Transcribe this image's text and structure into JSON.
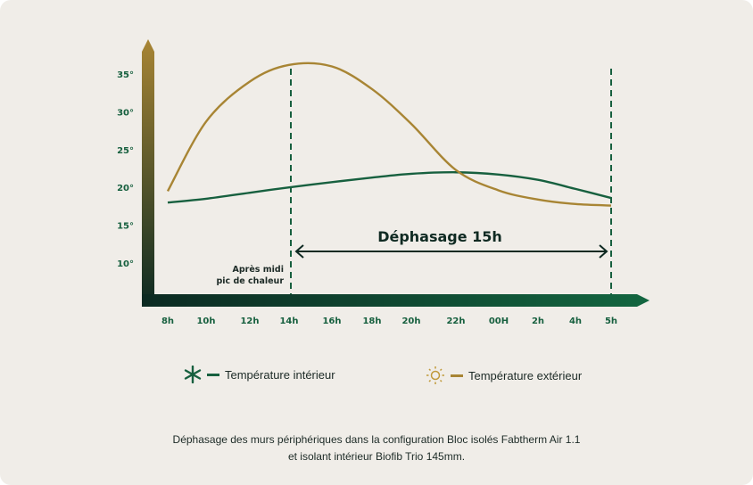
{
  "chart_data": {
    "type": "line",
    "categories": [
      "8h",
      "10h",
      "12h",
      "14h",
      "16h",
      "18h",
      "20h",
      "22h",
      "00H",
      "2h",
      "4h",
      "5h"
    ],
    "yticks": [
      "35°",
      "30°",
      "25°",
      "20°",
      "15°",
      "10°"
    ],
    "ytick_values": [
      35,
      30,
      25,
      20,
      15,
      10
    ],
    "series": [
      {
        "name": "Température intérieur",
        "color": "#17603f",
        "values": [
          18,
          18.5,
          19.3,
          20,
          20.7,
          21.3,
          21.8,
          22,
          21.7,
          21,
          19.8,
          18.6
        ]
      },
      {
        "name": "Température extérieur",
        "color": "#a88534",
        "values": [
          19.5,
          28.7,
          34,
          36.2,
          36,
          33,
          28.4,
          22.3,
          19.6,
          18.4,
          17.8,
          17.6
        ]
      }
    ],
    "annotations": {
      "dephasage": "Déphasage 15h",
      "peak_line1": "Après midi",
      "peak_line2": "pic de chaleur",
      "marker_start": "14h",
      "marker_end": "5h"
    },
    "legend_position": "bottom"
  },
  "caption": {
    "line1": "Déphasage des murs périphériques dans la configuration Bloc isolés Fabtherm Air 1.1",
    "line2": "et isolant intérieur Biofib Trio 145mm."
  }
}
